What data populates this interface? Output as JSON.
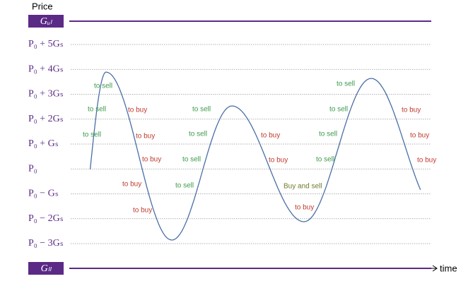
{
  "axis": {
    "y_label": "Price",
    "x_label": "time"
  },
  "bounds": {
    "upper": "Gᵤₗ",
    "lower": "Gₗₗ",
    "color": "#5b2a86"
  },
  "levels": [
    "P₀ + 5Gₛ",
    "P₀ + 4Gₛ",
    "P₀ + 3Gₛ",
    "P₀ + 2Gₛ",
    "P₀ + Gₛ",
    "P₀",
    "P₀ − Gₛ",
    "P₀ − 2Gₛ",
    "P₀ − 3Gₛ"
  ],
  "annotations": [
    {
      "text": "to sell",
      "color": "#3a9a4a"
    },
    {
      "text": "to sell",
      "color": "#3a9a4a"
    },
    {
      "text": "to sell",
      "color": "#3a9a4a"
    },
    {
      "text": "to buy",
      "color": "#c0392b"
    },
    {
      "text": "to buy",
      "color": "#c0392b"
    },
    {
      "text": "to buy",
      "color": "#c0392b"
    },
    {
      "text": "to buy",
      "color": "#c0392b"
    },
    {
      "text": "to buy",
      "color": "#c0392b"
    },
    {
      "text": "to sell",
      "color": "#3a9a4a"
    },
    {
      "text": "to sell",
      "color": "#3a9a4a"
    },
    {
      "text": "to sell",
      "color": "#3a9a4a"
    },
    {
      "text": "to sell",
      "color": "#3a9a4a"
    },
    {
      "text": "to buy",
      "color": "#c0392b"
    },
    {
      "text": "to buy",
      "color": "#c0392b"
    },
    {
      "text": "Buy and sell",
      "color": "#6b7a2a"
    },
    {
      "text": "to buy",
      "color": "#c0392b"
    },
    {
      "text": "to sell",
      "color": "#3a9a4a"
    },
    {
      "text": "to sell",
      "color": "#3a9a4a"
    },
    {
      "text": "to sell",
      "color": "#3a9a4a"
    },
    {
      "text": "to sell",
      "color": "#3a9a4a"
    },
    {
      "text": "to buy",
      "color": "#c0392b"
    },
    {
      "text": "to buy",
      "color": "#c0392b"
    },
    {
      "text": "to buy",
      "color": "#c0392b"
    }
  ]
}
